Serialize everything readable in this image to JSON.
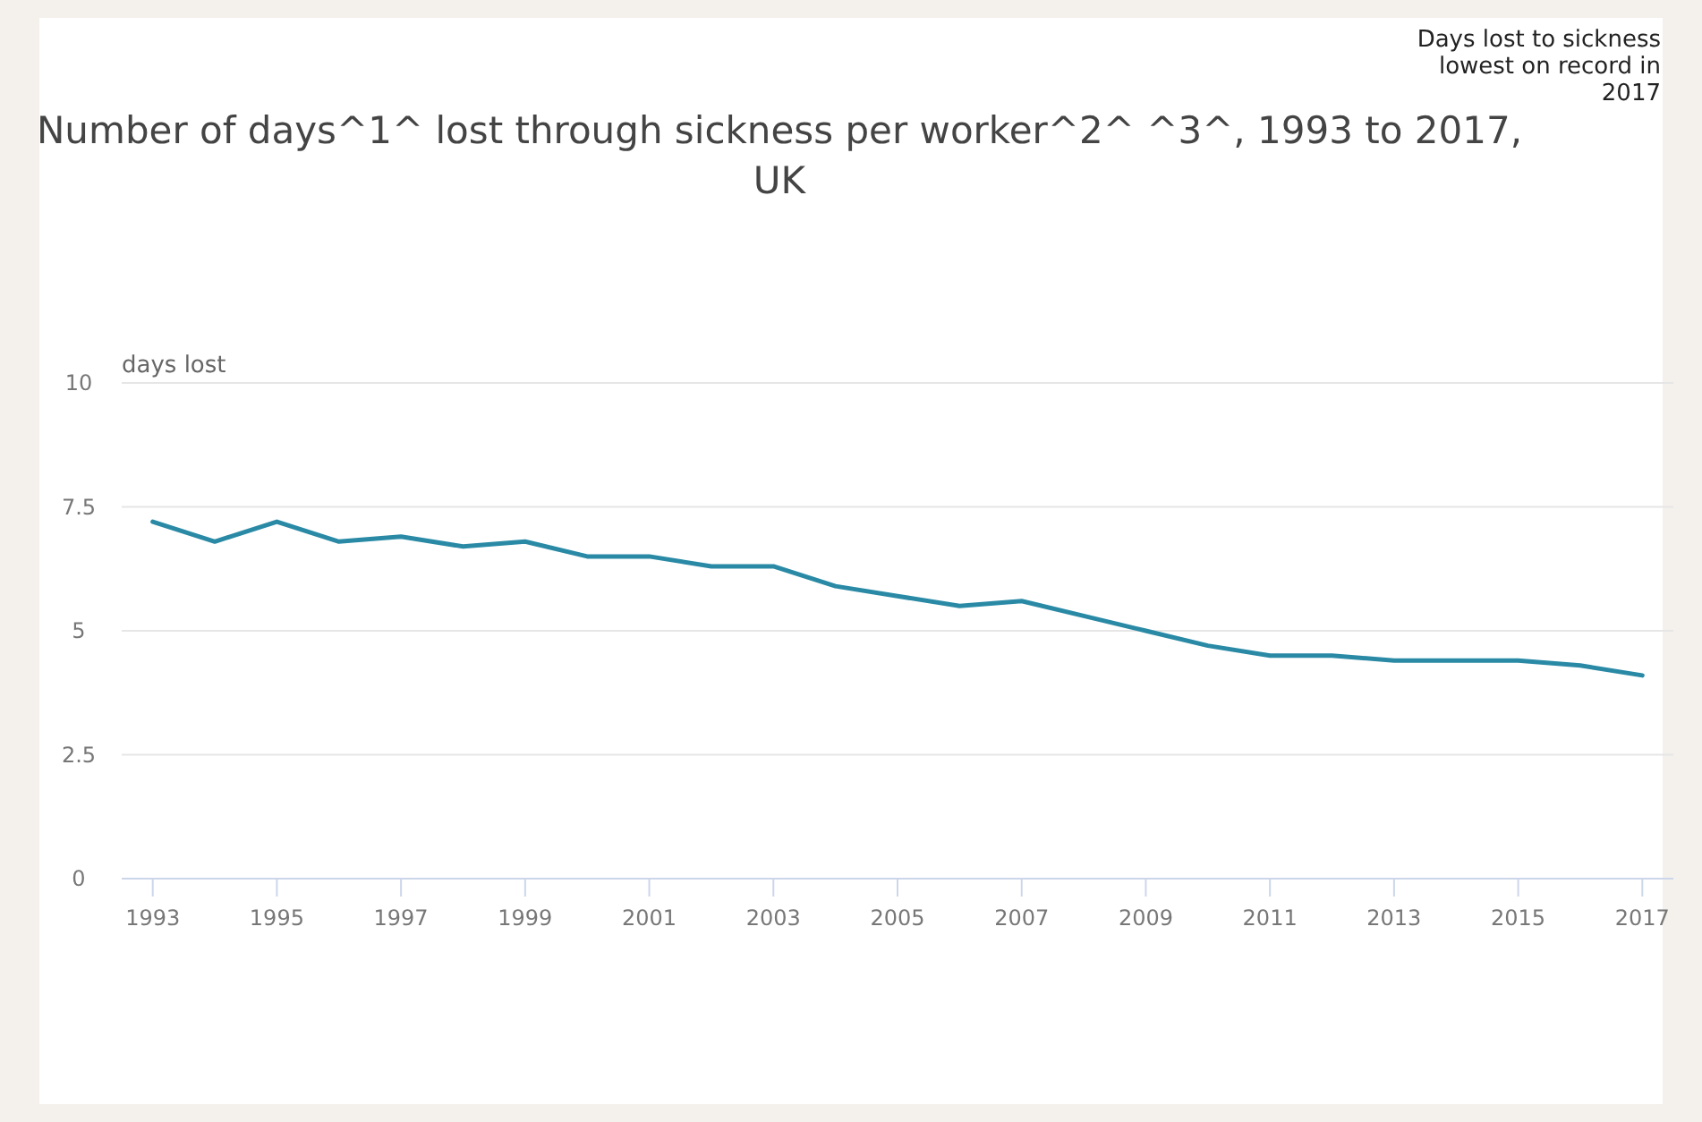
{
  "chart_data": {
    "type": "line",
    "title": "Number of days^1^ lost through sickness per worker^2^ ^3^, 1993 to 2017, UK",
    "ylabel": "days lost",
    "annotations": [
      "Days lost to sickness lowest on record in 2017"
    ],
    "x": [
      1993,
      1994,
      1995,
      1996,
      1997,
      1998,
      1999,
      2000,
      2001,
      2002,
      2003,
      2004,
      2005,
      2006,
      2007,
      2008,
      2009,
      2010,
      2011,
      2012,
      2013,
      2014,
      2015,
      2016,
      2017
    ],
    "series": [
      {
        "color": "#2a8aa6",
        "values": [
          7.2,
          6.8,
          7.2,
          6.8,
          6.9,
          6.7,
          6.8,
          6.5,
          6.5,
          6.3,
          6.3,
          5.9,
          5.7,
          5.5,
          5.6,
          5.3,
          5.0,
          4.7,
          4.5,
          4.5,
          4.4,
          4.4,
          4.4,
          4.3,
          4.1
        ]
      }
    ],
    "xlim": [
      1992.5,
      2017.5
    ],
    "xticks": [
      1993,
      1995,
      1997,
      1999,
      2001,
      2003,
      2005,
      2007,
      2009,
      2011,
      2013,
      2015,
      2017
    ],
    "ylim": [
      0,
      10
    ],
    "yticks": [
      0,
      2.5,
      5,
      7.5,
      10
    ],
    "grid": "y",
    "marker": "none",
    "line_style": "solid"
  }
}
